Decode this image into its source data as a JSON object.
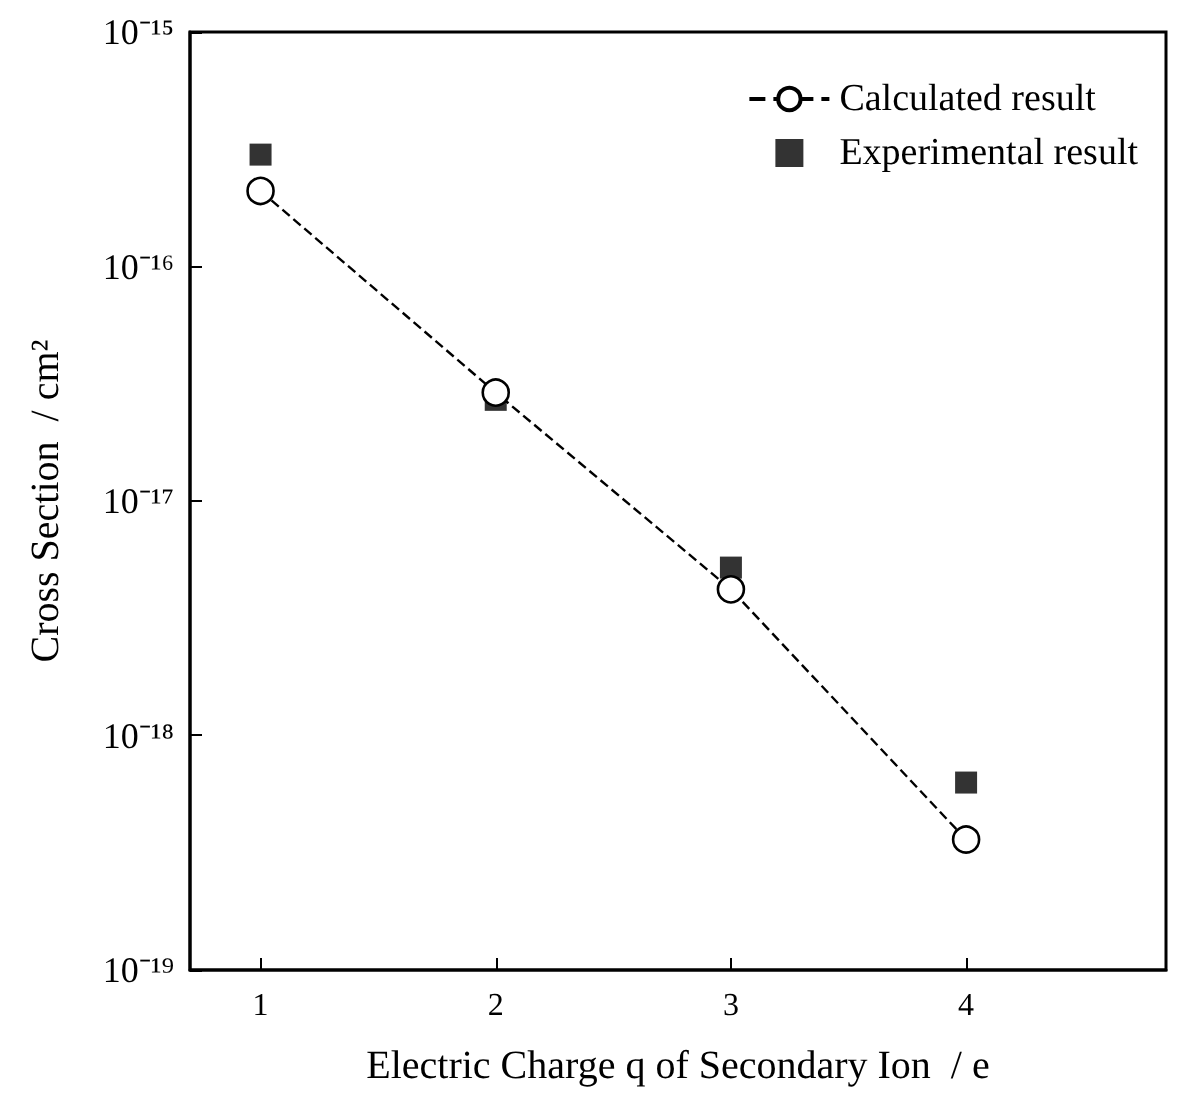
{
  "chart_data": {
    "type": "line",
    "xlabel": "Electric Charge q of Secondary Ion  / e",
    "ylabel": "Cross Section  / cm²",
    "x": [
      1,
      2,
      3,
      4
    ],
    "xlim": [
      0.7,
      4.85
    ],
    "xticks": [
      1,
      2,
      3,
      4
    ],
    "ylim": [
      1e-19,
      1e-15
    ],
    "yticks": [
      {
        "value": 1e-19,
        "label": "10⁻¹⁹"
      },
      {
        "value": 1e-18,
        "label": "10⁻¹⁸"
      },
      {
        "value": 1e-17,
        "label": "10⁻¹⁷"
      },
      {
        "value": 1e-16,
        "label": "10⁻¹⁶"
      },
      {
        "value": 1e-15,
        "label": "10⁻¹⁵"
      }
    ],
    "log": "y",
    "grid": false,
    "legend": "top right",
    "series": [
      {
        "name": "Calculated result",
        "color": "#000000",
        "marker": "circle",
        "line_style": "dashed",
        "values": [
          2.1e-16,
          2.9e-17,
          4.2e-18,
          3.6e-19
        ]
      },
      {
        "name": "Experimental result",
        "type": "scatter",
        "color": "#000000",
        "marker": "square",
        "values": [
          3e-16,
          2.7e-17,
          5.2e-18,
          6.3e-19
        ]
      }
    ]
  }
}
